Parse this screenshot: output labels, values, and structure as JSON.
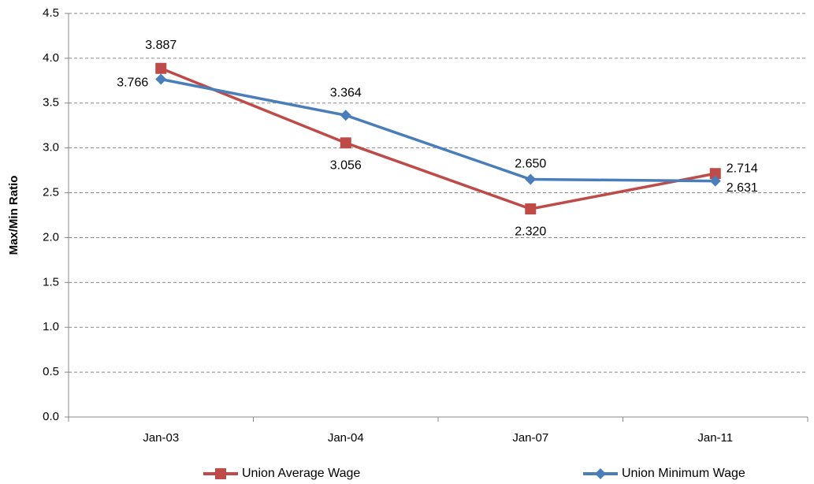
{
  "chart_data": {
    "type": "line",
    "y_label": "Max/Min Ratio",
    "categories": [
      "Jan-03",
      "Jan-04",
      "Jan-07",
      "Jan-11"
    ],
    "series": [
      {
        "name": "Union Average Wage",
        "color": "#be4b48",
        "marker": "square",
        "values": [
          3.887,
          3.056,
          2.32,
          2.714
        ],
        "value_labels": [
          "3.887",
          "3.056",
          "2.320",
          "2.714"
        ]
      },
      {
        "name": "Union Minimum Wage",
        "color": "#4a7ebb",
        "marker": "diamond",
        "values": [
          3.766,
          3.364,
          2.65,
          2.631
        ],
        "value_labels": [
          "3.766",
          "3.364",
          "2.650",
          "2.631"
        ]
      }
    ],
    "ylim": [
      0,
      4.5
    ],
    "yticks": [
      {
        "value": 0,
        "label": "0.0"
      },
      0.5,
      {
        "value": 1,
        "label": "1.0"
      },
      1.5,
      {
        "value": 2,
        "label": "2.0"
      },
      2.5,
      {
        "value": 3,
        "label": "3.0"
      },
      3.5,
      {
        "value": 4,
        "label": "4.0"
      },
      4.5
    ],
    "grid": true,
    "legend": "bottom"
  }
}
